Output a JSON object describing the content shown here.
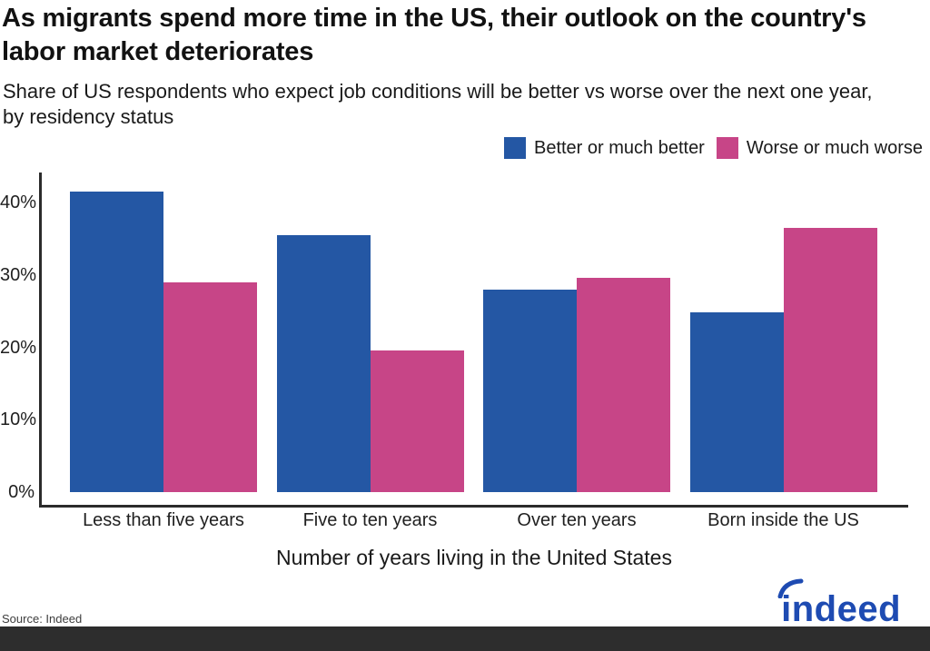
{
  "header": {
    "title": "As migrants spend more time in the US, their outlook on the country's labor market deteriorates",
    "subtitle": "Share of US respondents who expect job conditions will be better vs worse over the next one year, by residency status"
  },
  "legend": [
    {
      "label": "Better or much better",
      "color": "#2457A4"
    },
    {
      "label": "Worse or much worse",
      "color": "#C74587"
    }
  ],
  "chart_data": {
    "type": "bar",
    "categories": [
      "Less than five years",
      "Five to ten years",
      "Over ten years",
      "Born inside the US"
    ],
    "series": [
      {
        "name": "Better or much better",
        "color": "#2457A4",
        "values": [
          41.5,
          35.5,
          28.0,
          24.8
        ]
      },
      {
        "name": "Worse or much worse",
        "color": "#C74587",
        "values": [
          29.0,
          19.5,
          29.6,
          36.5
        ]
      }
    ],
    "title": "As migrants spend more time in the US, their outlook on the country's labor market deteriorates",
    "xlabel": "Number of years living in the United States",
    "ylabel": "",
    "ylim": [
      0,
      44
    ],
    "yticks": [
      0,
      10,
      20,
      30,
      40
    ],
    "ytick_suffix": "%",
    "grid": false,
    "legend_position": "top-right"
  },
  "footer": {
    "source": "Source: Indeed",
    "logo_text": "indeed",
    "logo_color": "#1E4BB2"
  }
}
